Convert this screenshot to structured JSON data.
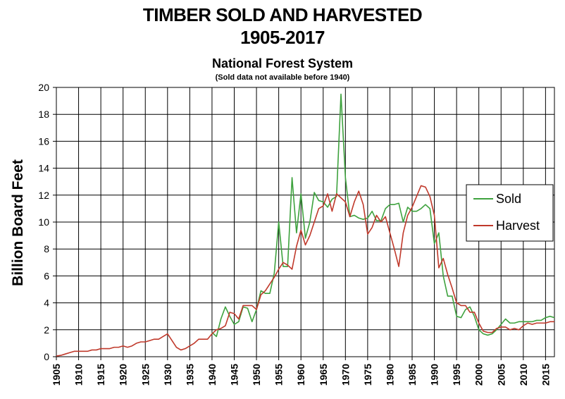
{
  "header": {
    "title_line1": "TIMBER SOLD AND HARVESTED",
    "title_line2": "1905-2017",
    "subtitle": "National Forest System",
    "note": "(Sold data not available before 1940)"
  },
  "chart_data": {
    "type": "line",
    "title": "TIMBER SOLD AND HARVESTED 1905-2017",
    "subtitle": "National Forest System",
    "ylabel": "Billion Board Feet",
    "xlabel": "",
    "xlim": [
      1905,
      2017
    ],
    "ylim": [
      0,
      20
    ],
    "x_ticks": [
      1905,
      1910,
      1915,
      1920,
      1925,
      1930,
      1935,
      1940,
      1945,
      1950,
      1955,
      1960,
      1965,
      1970,
      1975,
      1980,
      1985,
      1990,
      1995,
      2000,
      2005,
      2010,
      2015
    ],
    "y_ticks": [
      0,
      2,
      4,
      6,
      8,
      10,
      12,
      14,
      16,
      18,
      20
    ],
    "grid": true,
    "legend_position": "right",
    "colors": {
      "Sold": "#3ea23e",
      "Harvest": "#c0392b"
    },
    "series": [
      {
        "name": "Sold",
        "color": "#3ea23e",
        "points": [
          [
            1940,
            1.8
          ],
          [
            1941,
            1.5
          ],
          [
            1942,
            2.8
          ],
          [
            1943,
            3.7
          ],
          [
            1944,
            3.0
          ],
          [
            1945,
            2.4
          ],
          [
            1946,
            2.6
          ],
          [
            1947,
            3.7
          ],
          [
            1948,
            3.6
          ],
          [
            1949,
            2.6
          ],
          [
            1950,
            3.5
          ],
          [
            1951,
            4.9
          ],
          [
            1952,
            4.7
          ],
          [
            1953,
            4.7
          ],
          [
            1954,
            6.2
          ],
          [
            1955,
            10.0
          ],
          [
            1956,
            6.7
          ],
          [
            1957,
            6.7
          ],
          [
            1958,
            13.3
          ],
          [
            1959,
            9.2
          ],
          [
            1960,
            12.1
          ],
          [
            1961,
            8.8
          ],
          [
            1962,
            10.0
          ],
          [
            1963,
            12.2
          ],
          [
            1964,
            11.6
          ],
          [
            1965,
            11.5
          ],
          [
            1966,
            11.1
          ],
          [
            1967,
            11.7
          ],
          [
            1968,
            11.9
          ],
          [
            1969,
            19.5
          ],
          [
            1970,
            13.3
          ],
          [
            1971,
            10.4
          ],
          [
            1972,
            10.5
          ],
          [
            1973,
            10.3
          ],
          [
            1974,
            10.2
          ],
          [
            1975,
            10.3
          ],
          [
            1976,
            10.8
          ],
          [
            1977,
            10.1
          ],
          [
            1978,
            10.1
          ],
          [
            1979,
            11.0
          ],
          [
            1980,
            11.3
          ],
          [
            1981,
            11.3
          ],
          [
            1982,
            11.4
          ],
          [
            1983,
            10.0
          ],
          [
            1984,
            11.1
          ],
          [
            1985,
            10.8
          ],
          [
            1986,
            10.8
          ],
          [
            1987,
            11.0
          ],
          [
            1988,
            11.3
          ],
          [
            1989,
            11.0
          ],
          [
            1990,
            8.4
          ],
          [
            1991,
            9.2
          ],
          [
            1992,
            6.0
          ],
          [
            1993,
            4.5
          ],
          [
            1994,
            4.5
          ],
          [
            1995,
            3.0
          ],
          [
            1996,
            2.9
          ],
          [
            1997,
            3.5
          ],
          [
            1998,
            3.7
          ],
          [
            1999,
            3.0
          ],
          [
            2000,
            2.0
          ],
          [
            2001,
            1.7
          ],
          [
            2002,
            1.6
          ],
          [
            2003,
            1.7
          ],
          [
            2004,
            2.0
          ],
          [
            2005,
            2.4
          ],
          [
            2006,
            2.8
          ],
          [
            2007,
            2.5
          ],
          [
            2008,
            2.5
          ],
          [
            2009,
            2.6
          ],
          [
            2010,
            2.6
          ],
          [
            2011,
            2.6
          ],
          [
            2012,
            2.6
          ],
          [
            2013,
            2.7
          ],
          [
            2014,
            2.7
          ],
          [
            2015,
            2.9
          ],
          [
            2016,
            3.0
          ],
          [
            2017,
            2.9
          ]
        ]
      },
      {
        "name": "Harvest",
        "color": "#c0392b",
        "points": [
          [
            1905,
            0.05
          ],
          [
            1906,
            0.1
          ],
          [
            1907,
            0.2
          ],
          [
            1908,
            0.3
          ],
          [
            1909,
            0.4
          ],
          [
            1910,
            0.4
          ],
          [
            1911,
            0.4
          ],
          [
            1912,
            0.4
          ],
          [
            1913,
            0.5
          ],
          [
            1914,
            0.5
          ],
          [
            1915,
            0.6
          ],
          [
            1916,
            0.6
          ],
          [
            1917,
            0.6
          ],
          [
            1918,
            0.7
          ],
          [
            1919,
            0.7
          ],
          [
            1920,
            0.8
          ],
          [
            1921,
            0.7
          ],
          [
            1922,
            0.8
          ],
          [
            1923,
            1.0
          ],
          [
            1924,
            1.1
          ],
          [
            1925,
            1.1
          ],
          [
            1926,
            1.2
          ],
          [
            1927,
            1.3
          ],
          [
            1928,
            1.3
          ],
          [
            1929,
            1.5
          ],
          [
            1930,
            1.7
          ],
          [
            1931,
            1.2
          ],
          [
            1932,
            0.7
          ],
          [
            1933,
            0.5
          ],
          [
            1934,
            0.6
          ],
          [
            1935,
            0.8
          ],
          [
            1936,
            1.0
          ],
          [
            1937,
            1.3
          ],
          [
            1938,
            1.3
          ],
          [
            1939,
            1.3
          ],
          [
            1940,
            1.7
          ],
          [
            1941,
            2.0
          ],
          [
            1942,
            2.1
          ],
          [
            1943,
            2.3
          ],
          [
            1944,
            3.3
          ],
          [
            1945,
            3.2
          ],
          [
            1946,
            2.8
          ],
          [
            1947,
            3.8
          ],
          [
            1948,
            3.8
          ],
          [
            1949,
            3.8
          ],
          [
            1950,
            3.5
          ],
          [
            1951,
            4.6
          ],
          [
            1952,
            4.9
          ],
          [
            1953,
            5.4
          ],
          [
            1954,
            5.9
          ],
          [
            1955,
            6.5
          ],
          [
            1956,
            7.0
          ],
          [
            1957,
            6.8
          ],
          [
            1958,
            6.5
          ],
          [
            1959,
            8.2
          ],
          [
            1960,
            9.4
          ],
          [
            1961,
            8.3
          ],
          [
            1962,
            9.0
          ],
          [
            1963,
            10.0
          ],
          [
            1964,
            11.0
          ],
          [
            1965,
            11.2
          ],
          [
            1966,
            12.1
          ],
          [
            1967,
            10.8
          ],
          [
            1968,
            12.1
          ],
          [
            1969,
            11.8
          ],
          [
            1970,
            11.5
          ],
          [
            1971,
            10.4
          ],
          [
            1972,
            11.5
          ],
          [
            1973,
            12.3
          ],
          [
            1974,
            11.3
          ],
          [
            1975,
            9.1
          ],
          [
            1976,
            9.6
          ],
          [
            1977,
            10.5
          ],
          [
            1978,
            10.0
          ],
          [
            1979,
            10.4
          ],
          [
            1980,
            9.2
          ],
          [
            1981,
            8.0
          ],
          [
            1982,
            6.7
          ],
          [
            1983,
            9.2
          ],
          [
            1984,
            10.5
          ],
          [
            1985,
            11.1
          ],
          [
            1986,
            11.9
          ],
          [
            1987,
            12.7
          ],
          [
            1988,
            12.6
          ],
          [
            1989,
            11.9
          ],
          [
            1990,
            10.5
          ],
          [
            1991,
            6.6
          ],
          [
            1992,
            7.3
          ],
          [
            1993,
            6.1
          ],
          [
            1994,
            5.1
          ],
          [
            1995,
            4.0
          ],
          [
            1996,
            3.8
          ],
          [
            1997,
            3.8
          ],
          [
            1998,
            3.3
          ],
          [
            1999,
            3.3
          ],
          [
            2000,
            2.5
          ],
          [
            2001,
            1.9
          ],
          [
            2002,
            1.8
          ],
          [
            2003,
            1.8
          ],
          [
            2004,
            2.1
          ],
          [
            2005,
            2.2
          ],
          [
            2006,
            2.2
          ],
          [
            2007,
            2.0
          ],
          [
            2008,
            2.1
          ],
          [
            2009,
            2.0
          ],
          [
            2010,
            2.3
          ],
          [
            2011,
            2.5
          ],
          [
            2012,
            2.4
          ],
          [
            2013,
            2.5
          ],
          [
            2014,
            2.5
          ],
          [
            2015,
            2.5
          ],
          [
            2016,
            2.6
          ],
          [
            2017,
            2.6
          ]
        ]
      }
    ]
  }
}
